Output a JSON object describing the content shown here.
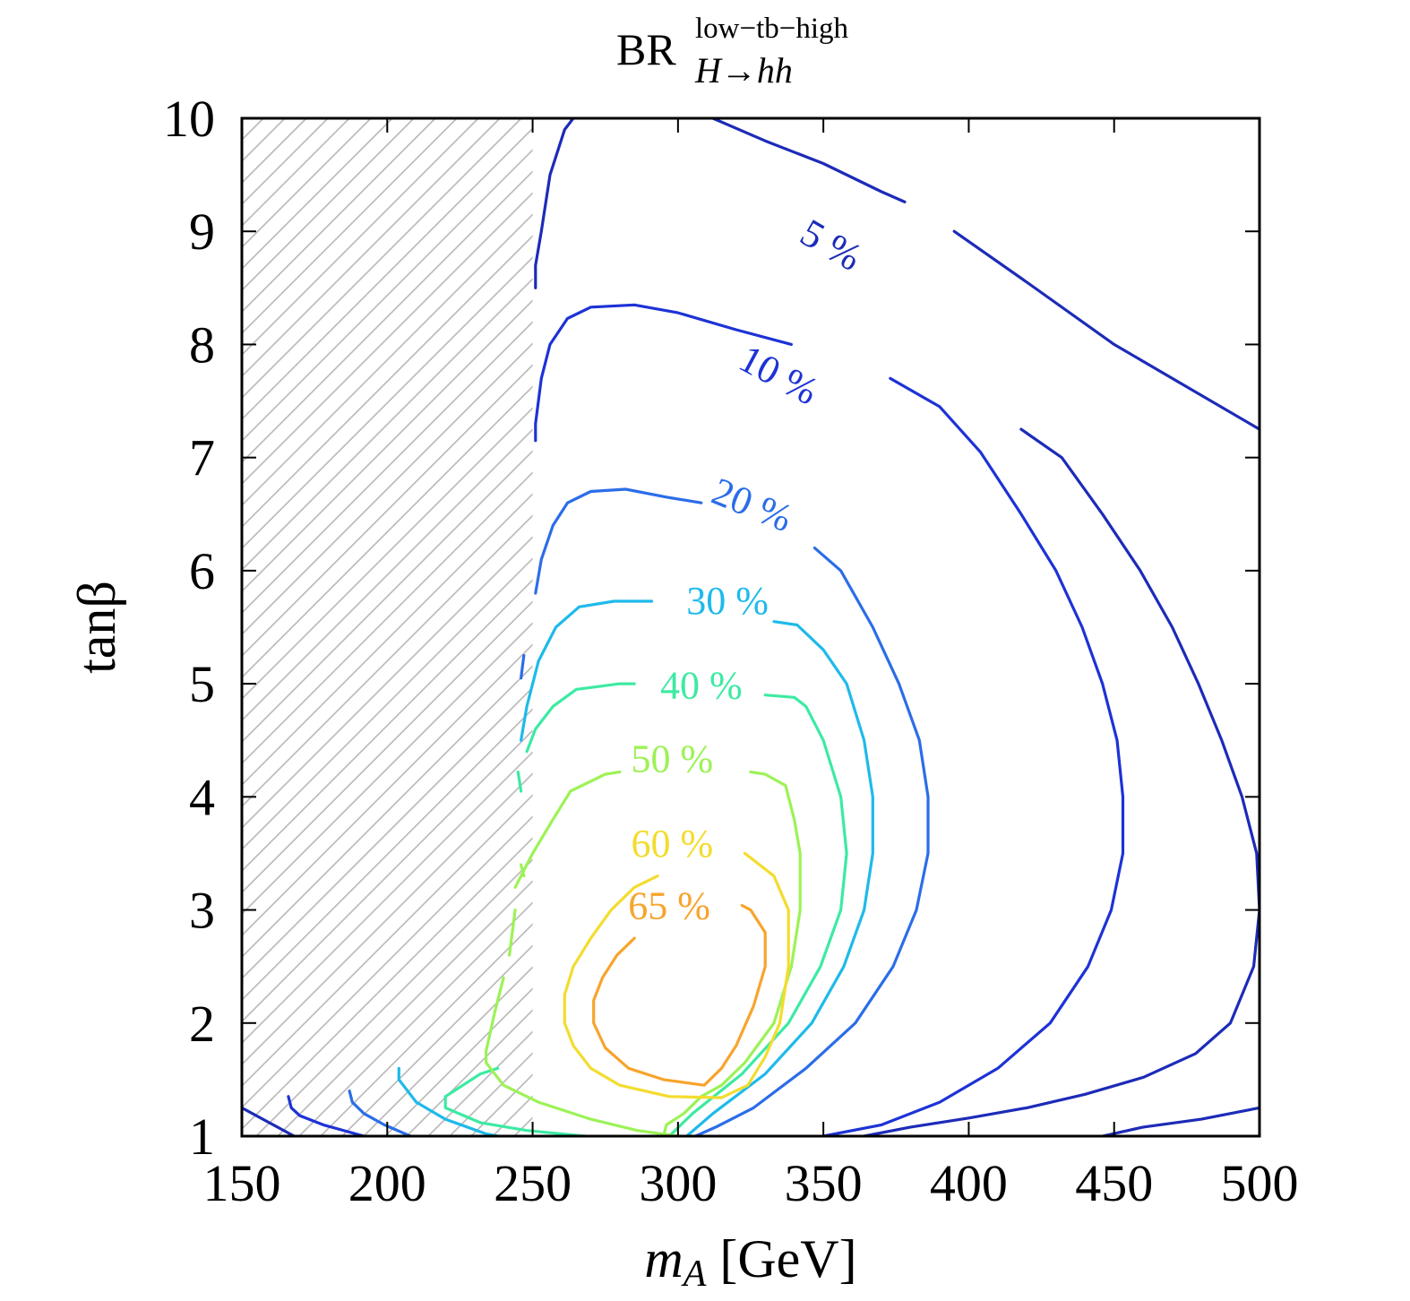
{
  "chart_data": {
    "type": "contour",
    "title": {
      "main": "BR",
      "superscript": "low−tb−high",
      "subscript": "H→hh"
    },
    "xlabel": {
      "var": "m",
      "sub": "A",
      "unit": " [GeV]"
    },
    "ylabel": "tanβ",
    "xlim": [
      150,
      500
    ],
    "ylim": [
      1,
      10
    ],
    "xticks": [
      150,
      200,
      250,
      300,
      350,
      400,
      450,
      500
    ],
    "yticks": [
      1,
      2,
      3,
      4,
      5,
      6,
      7,
      8,
      9,
      10
    ],
    "excluded_region": {
      "pattern": "hatched",
      "x_max": 250
    },
    "contours": [
      {
        "label": "5 %",
        "color": "#1c2bb8",
        "label_at": [
          352,
          8.85
        ],
        "label_angle": 30,
        "segments": [
          [
            [
              150,
              1.25
            ],
            [
              168,
              1.0
            ]
          ],
          [
            [
              251,
              8.5
            ],
            [
              251,
              8.7
            ],
            [
              253,
              9.0
            ],
            [
              256,
              9.5
            ],
            [
              261,
              9.9
            ],
            [
              264,
              10.0
            ]
          ],
          [
            [
              312,
              10.0
            ],
            [
              330,
              9.8
            ],
            [
              350,
              9.6
            ],
            [
              370,
              9.35
            ],
            [
              378,
              9.26
            ]
          ],
          [
            [
              395,
              9.0
            ],
            [
              420,
              8.55
            ],
            [
              450,
              8.0
            ],
            [
              480,
              7.55
            ],
            [
              500,
              7.25
            ]
          ],
          [
            [
              150,
              1.0
            ],
            [
              150,
              1.0
            ]
          ],
          [
            [
              364,
              1.0
            ],
            [
              380,
              1.08
            ],
            [
              400,
              1.16
            ],
            [
              420,
              1.25
            ],
            [
              440,
              1.37
            ],
            [
              460,
              1.52
            ],
            [
              478,
              1.73
            ],
            [
              490,
              2.0
            ],
            [
              498,
              2.5
            ],
            [
              500,
              3.0
            ],
            [
              499,
              3.5
            ],
            [
              494,
              4.0
            ],
            [
              487,
              4.5
            ],
            [
              479,
              5.0
            ],
            [
              470,
              5.5
            ],
            [
              459,
              6.0
            ],
            [
              446,
              6.5
            ],
            [
              432,
              7.0
            ],
            [
              418,
              7.25
            ]
          ],
          [
            [
              446,
              1.0
            ],
            [
              460,
              1.08
            ],
            [
              480,
              1.15
            ],
            [
              500,
              1.25
            ]
          ]
        ]
      },
      {
        "label": "10 %",
        "color": "#1d32d6",
        "label_at": [
          334,
          7.7
        ],
        "label_angle": 28,
        "segments": [
          [
            [
              166,
              1.35
            ],
            [
              167,
              1.25
            ],
            [
              170,
              1.18
            ],
            [
              178,
              1.1
            ],
            [
              192,
              1.0
            ]
          ],
          [
            [
              251,
              7.15
            ],
            [
              251,
              7.3
            ],
            [
              253,
              7.7
            ],
            [
              256,
              8.0
            ],
            [
              262,
              8.23
            ],
            [
              270,
              8.33
            ],
            [
              285,
              8.35
            ],
            [
              300,
              8.28
            ],
            [
              320,
              8.13
            ],
            [
              339,
              8.0
            ]
          ],
          [
            [
              373,
              7.7
            ],
            [
              390,
              7.45
            ],
            [
              404,
              7.05
            ],
            [
              418,
              6.5
            ],
            [
              430,
              6.0
            ],
            [
              439,
              5.5
            ],
            [
              446,
              5.0
            ],
            [
              451,
              4.5
            ],
            [
              453,
              4.0
            ],
            [
              453,
              3.5
            ],
            [
              449,
              3.0
            ],
            [
              441,
              2.5
            ],
            [
              428,
              2.0
            ],
            [
              410,
              1.6
            ],
            [
              390,
              1.3
            ],
            [
              370,
              1.1
            ],
            [
              350,
              1.0
            ]
          ]
        ]
      },
      {
        "label": "20 %",
        "color": "#2b6de8",
        "label_at": [
          325,
          6.55
        ],
        "label_angle": 22,
        "segments": [
          [
            [
              187,
              1.4
            ],
            [
              188,
              1.3
            ],
            [
              192,
              1.2
            ],
            [
              199,
              1.1
            ],
            [
              208,
              1.0
            ]
          ],
          [
            [
              246,
              5.05
            ],
            [
              247,
              5.25
            ]
          ],
          [
            [
              251,
              5.8
            ],
            [
              253,
              6.1
            ],
            [
              257,
              6.4
            ],
            [
              262,
              6.6
            ],
            [
              270,
              6.7
            ],
            [
              282,
              6.72
            ],
            [
              296,
              6.65
            ],
            [
              308,
              6.6
            ]
          ],
          [
            [
              347,
              6.2
            ],
            [
              356,
              6.0
            ],
            [
              367,
              5.5
            ],
            [
              376,
              5.0
            ],
            [
              383,
              4.5
            ],
            [
              386,
              4.0
            ],
            [
              386,
              3.5
            ],
            [
              382,
              3.0
            ],
            [
              374,
              2.5
            ],
            [
              361,
              2.0
            ],
            [
              344,
              1.6
            ],
            [
              326,
              1.25
            ],
            [
              313,
              1.08
            ],
            [
              306,
              1.0
            ]
          ]
        ]
      },
      {
        "label": "30 %",
        "color": "#1ebaea",
        "label_at": [
          317,
          5.7
        ],
        "label_angle": 0,
        "segments": [
          [
            [
              204,
              1.6
            ],
            [
              204,
              1.5
            ],
            [
              210,
              1.3
            ],
            [
              220,
              1.15
            ],
            [
              234,
              1.02
            ],
            [
              238,
              1.0
            ]
          ],
          [
            [
              246,
              4.5
            ],
            [
              248,
              4.8
            ],
            [
              252,
              5.2
            ],
            [
              258,
              5.5
            ],
            [
              266,
              5.68
            ],
            [
              278,
              5.73
            ],
            [
              291,
              5.73
            ]
          ],
          [
            [
              333,
              5.55
            ],
            [
              341,
              5.52
            ],
            [
              350,
              5.3
            ],
            [
              358,
              5.0
            ],
            [
              364,
              4.5
            ],
            [
              367,
              4.0
            ],
            [
              367,
              3.5
            ],
            [
              364,
              3.0
            ],
            [
              357,
              2.5
            ],
            [
              346,
              2.0
            ],
            [
              330,
              1.55
            ],
            [
              312,
              1.2
            ],
            [
              303,
              1.0
            ]
          ]
        ]
      },
      {
        "label": "40 %",
        "color": "#3ceaa2",
        "label_at": [
          308,
          4.95
        ],
        "label_angle": 0,
        "segments": [
          [
            [
              238,
              1.6
            ],
            [
              232,
              1.55
            ],
            [
              226,
              1.45
            ],
            [
              220,
              1.35
            ],
            [
              220,
              1.25
            ],
            [
              232,
              1.12
            ],
            [
              248,
              1.05
            ],
            [
              268,
              1.0
            ]
          ],
          [
            [
              246,
              4.05
            ],
            [
              245,
              4.22
            ]
          ],
          [
            [
              248,
              4.4
            ],
            [
              251,
              4.6
            ],
            [
              257,
              4.8
            ],
            [
              265,
              4.95
            ],
            [
              280,
              5.0
            ],
            [
              285,
              5.0
            ]
          ],
          [
            [
              330,
              4.9
            ],
            [
              340,
              4.88
            ],
            [
              344,
              4.8
            ],
            [
              350,
              4.5
            ],
            [
              356,
              4.0
            ],
            [
              358,
              3.5
            ],
            [
              356,
              3.0
            ],
            [
              349,
              2.5
            ],
            [
              338,
              2.0
            ],
            [
              322,
              1.55
            ],
            [
              305,
              1.2
            ],
            [
              297,
              1.0
            ]
          ]
        ]
      },
      {
        "label": "50 %",
        "color": "#9cf256",
        "label_at": [
          298,
          4.3
        ],
        "label_angle": 0,
        "segments": [
          [
            [
              246,
              3.4
            ],
            [
              247,
              3.3
            ]
          ],
          [
            [
              244,
              3.0
            ],
            [
              242,
              2.6
            ]
          ],
          [
            [
              240,
              2.4
            ],
            [
              237,
              2.1
            ],
            [
              234,
              1.75
            ],
            [
              234,
              1.65
            ],
            [
              240,
              1.45
            ],
            [
              252,
              1.3
            ],
            [
              270,
              1.15
            ],
            [
              286,
              1.05
            ],
            [
              300,
              1.0
            ]
          ],
          [
            [
              244,
              3.2
            ],
            [
              250,
              3.5
            ],
            [
              257,
              3.8
            ],
            [
              263,
              4.05
            ],
            [
              275,
              4.2
            ],
            [
              280,
              4.22
            ]
          ],
          [
            [
              325,
              4.22
            ],
            [
              330,
              4.2
            ],
            [
              337,
              4.1
            ],
            [
              340,
              3.8
            ],
            [
              342,
              3.5
            ],
            [
              342,
              3.0
            ],
            [
              339,
              2.5
            ],
            [
              333,
              2.0
            ],
            [
              323,
              1.65
            ],
            [
              315,
              1.45
            ],
            [
              308,
              1.35
            ],
            [
              302,
              1.2
            ],
            [
              296,
              1.1
            ],
            [
              295,
              1.0
            ]
          ]
        ]
      },
      {
        "label": "60 %",
        "color": "#f3dc2e",
        "label_at": [
          298,
          3.55
        ],
        "label_angle": 0,
        "segments": [
          [
            [
              293,
              3.3
            ],
            [
              285,
              3.2
            ],
            [
              277,
              3.0
            ],
            [
              270,
              2.75
            ],
            [
              264,
              2.5
            ],
            [
              261,
              2.25
            ],
            [
              261,
              2.0
            ],
            [
              264,
              1.8
            ],
            [
              270,
              1.6
            ],
            [
              280,
              1.45
            ],
            [
              297,
              1.35
            ],
            [
              315,
              1.34
            ],
            [
              324,
              1.45
            ],
            [
              330,
              1.7
            ],
            [
              335,
              2.0
            ],
            [
              338,
              2.5
            ],
            [
              338,
              3.0
            ],
            [
              333,
              3.3
            ],
            [
              323,
              3.5
            ]
          ]
        ]
      },
      {
        "label": "65 %",
        "color": "#f7a42c",
        "label_at": [
          297,
          3.0
        ],
        "label_angle": 0,
        "segments": [
          [
            [
              285,
              2.75
            ],
            [
              279,
              2.6
            ],
            [
              274,
              2.4
            ],
            [
              271,
              2.2
            ],
            [
              271,
              2.0
            ],
            [
              275,
              1.78
            ],
            [
              283,
              1.6
            ],
            [
              295,
              1.5
            ],
            [
              309,
              1.45
            ],
            [
              315,
              1.6
            ],
            [
              320,
              1.8
            ],
            [
              326,
              2.15
            ],
            [
              330,
              2.5
            ],
            [
              330,
              2.8
            ],
            [
              325,
              3.0
            ],
            [
              322,
              3.04
            ]
          ]
        ]
      }
    ]
  }
}
